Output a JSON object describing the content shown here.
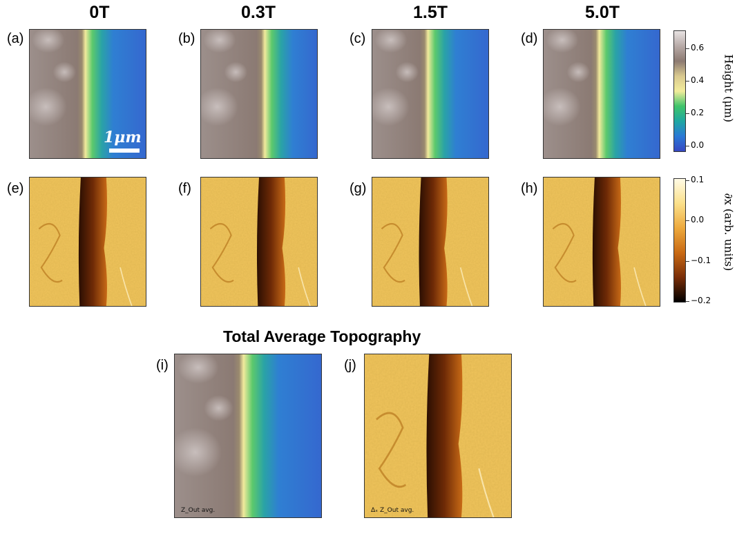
{
  "columns": [
    "0T",
    "0.3T",
    "1.5T",
    "5.0T"
  ],
  "panels_top": [
    "(a)",
    "(b)",
    "(c)",
    "(d)"
  ],
  "panels_mid": [
    "(e)",
    "(f)",
    "(g)",
    "(h)"
  ],
  "panels_bottom": [
    "(i)",
    "(j)"
  ],
  "scale_bar_label": "1μm",
  "height_colorbar": {
    "title": "Height (μm)",
    "ticks": [
      "0.6",
      "0.4",
      "0.2",
      "0.0"
    ],
    "gradient": [
      "#e8e3e3",
      "#b7aaa7",
      "#8c7a72",
      "#d9c98f",
      "#f2ec9b",
      "#3fc46a",
      "#1fa7a2",
      "#2a79d6",
      "#3748c2"
    ]
  },
  "derivative_colorbar": {
    "title": "∂x (arb. units)",
    "ticks": [
      "0.1",
      "0.0",
      "−0.1",
      "−0.2"
    ],
    "gradient": [
      "#fffbe6",
      "#fbe08a",
      "#eda93d",
      "#c96a14",
      "#7a2e08",
      "#000000"
    ]
  },
  "section_title": "Total Average Topography",
  "avg_height_label": "Z_Out avg.",
  "avg_deriv_label": "Δₓ Z_Out avg."
}
